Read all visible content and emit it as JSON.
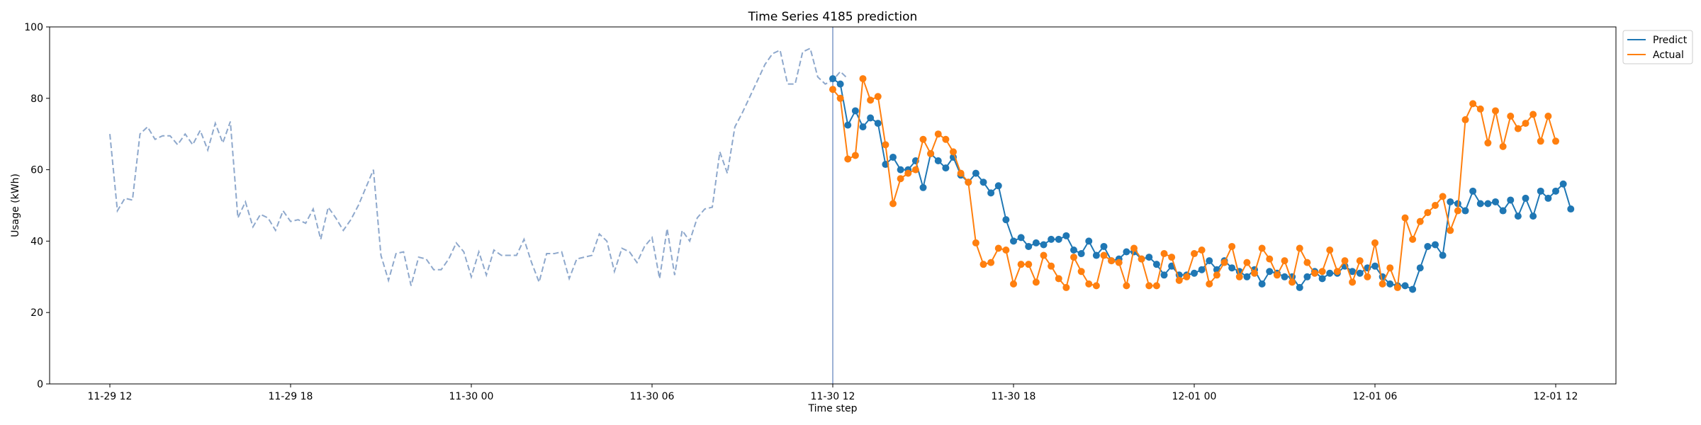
{
  "chart_data": {
    "type": "line",
    "title": "Time Series 4185 prediction",
    "xlabel": "Time step",
    "ylabel": "Usage (kWh)",
    "ylim": [
      0,
      100
    ],
    "yticks": [
      0,
      20,
      40,
      60,
      80,
      100
    ],
    "x_range": [
      "11-29 10:00",
      "12-01 14:00"
    ],
    "x_ticks": [
      {
        "label": "11-29 12",
        "value": "11-29 12:00"
      },
      {
        "label": "11-29 18",
        "value": "11-29 18:00"
      },
      {
        "label": "11-30 00",
        "value": "11-30 00:00"
      },
      {
        "label": "11-30 06",
        "value": "11-30 06:00"
      },
      {
        "label": "11-30 12",
        "value": "11-30 12:00"
      },
      {
        "label": "11-30 18",
        "value": "11-30 18:00"
      },
      {
        "label": "12-01 00",
        "value": "12-01 00:00"
      },
      {
        "label": "12-01 06",
        "value": "12-01 06:00"
      },
      {
        "label": "12-01 12",
        "value": "12-01 12:00"
      }
    ],
    "grid": false,
    "legend_position": "upper-right outside",
    "split_marker": "11-30 12:00",
    "history": {
      "start": "11-29 12:00",
      "step_minutes": 15,
      "color": "#8ea8cc",
      "style": "dashed",
      "values": [
        70,
        48.5,
        52,
        51.5,
        70,
        72,
        68.5,
        69.5,
        69.5,
        67,
        70,
        67,
        71,
        65.5,
        73,
        67.5,
        73.5,
        46.5,
        51,
        44,
        47.5,
        46.5,
        43,
        48.5,
        45.5,
        46,
        45,
        49,
        40.5,
        49.5,
        46.5,
        43,
        46,
        50,
        55,
        60,
        36,
        29,
        36.5,
        37,
        27.5,
        35.5,
        35,
        32,
        32,
        35,
        39.5,
        37,
        30,
        37,
        30.5,
        37.5,
        36,
        36,
        36,
        40.5,
        34,
        28.5,
        36.5,
        36.5,
        37,
        29.5,
        35,
        35.5,
        36,
        42,
        40,
        31.5,
        38,
        37,
        34,
        38.5,
        41,
        29.5,
        43.5,
        30.5,
        43,
        40,
        46.5,
        49,
        49.5,
        65,
        59,
        72,
        76,
        80.5,
        85,
        89.5,
        92.5,
        93.5,
        84,
        84,
        93,
        94,
        86,
        84,
        85,
        87.5,
        85.5
      ]
    },
    "series": [
      {
        "name": "Predict",
        "color": "#1f77b4",
        "start": "11-30 12:00",
        "step_minutes": 15,
        "values": [
          85.5,
          84,
          72.5,
          76.5,
          72,
          74.5,
          73,
          61.5,
          63.5,
          60,
          60,
          62.5,
          55,
          64.5,
          62.5,
          60.5,
          63.5,
          58.5,
          56.5,
          59,
          56.5,
          53.5,
          55.5,
          46,
          40,
          41,
          38.5,
          39.5,
          39,
          40.5,
          40.5,
          41.5,
          37.5,
          36.5,
          40,
          36,
          38.5,
          34.5,
          35,
          37,
          37,
          35,
          35.5,
          33.5,
          30.5,
          33,
          30.5,
          30.5,
          31,
          32,
          34.5,
          32,
          34.5,
          32.5,
          31.5,
          30,
          32,
          28,
          31.5,
          31,
          30,
          30,
          27,
          30,
          31.5,
          29.5,
          31,
          31,
          33,
          31.5,
          31,
          32.5,
          33,
          30,
          28,
          27.5,
          27.5,
          26.5,
          32.5,
          38.5,
          39,
          36,
          51,
          50.5,
          48.5,
          54,
          50.5,
          50.5,
          51,
          48.5,
          51.5,
          47,
          52,
          47,
          54,
          52,
          54,
          56,
          49
        ]
      },
      {
        "name": "Actual",
        "color": "#ff7f0e",
        "start": "11-30 12:00",
        "step_minutes": 15,
        "values": [
          82.5,
          80,
          63,
          64,
          85.5,
          79.5,
          80.5,
          67,
          50.5,
          57.5,
          59,
          60,
          68.5,
          64.5,
          70,
          68.5,
          65,
          59,
          56.5,
          39.5,
          33.5,
          34,
          38,
          37.5,
          28,
          33.5,
          33.5,
          28.5,
          36,
          33,
          29.5,
          27,
          35.5,
          31.5,
          28,
          27.5,
          36,
          34.5,
          34,
          27.5,
          38,
          35,
          27.5,
          27.5,
          36.5,
          35.5,
          29,
          30,
          36.5,
          37.5,
          28,
          30.5,
          34,
          38.5,
          30,
          34,
          31,
          38,
          35,
          30.5,
          34.5,
          28.5,
          38,
          34,
          31,
          31.5,
          37.5,
          31.5,
          34.5,
          28.5,
          34.5,
          30,
          39.5,
          28,
          32.5,
          27,
          46.5,
          40.5,
          45.5,
          48,
          50,
          52.5,
          43,
          48.5,
          74,
          78.5,
          77,
          67.5,
          76.5,
          66.5,
          75,
          71.5,
          73,
          75.5,
          68,
          75,
          68
        ]
      }
    ]
  }
}
